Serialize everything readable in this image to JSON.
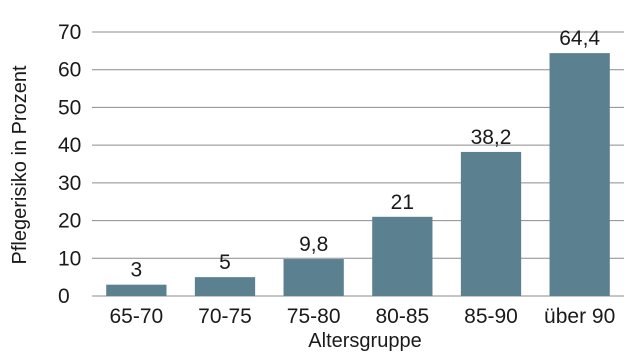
{
  "chart_data": {
    "type": "bar",
    "title": "",
    "xlabel": "Altersgruppe",
    "ylabel": "Pflegerisiko in Prozent",
    "categories": [
      "65-70",
      "70-75",
      "75-80",
      "80-85",
      "85-90",
      "über 90"
    ],
    "values": [
      3,
      5,
      9.8,
      21,
      38.2,
      64.4
    ],
    "value_labels": [
      "3",
      "5",
      "9,8",
      "21",
      "38,2",
      "64,4"
    ],
    "yticks": [
      0,
      10,
      20,
      30,
      40,
      50,
      60,
      70
    ],
    "ylim": [
      0,
      70
    ],
    "grid": true,
    "legend": "none",
    "colors": {
      "bar": "#5b8191",
      "grid": "#8c8c8c",
      "text": "#1a1a1a"
    }
  }
}
